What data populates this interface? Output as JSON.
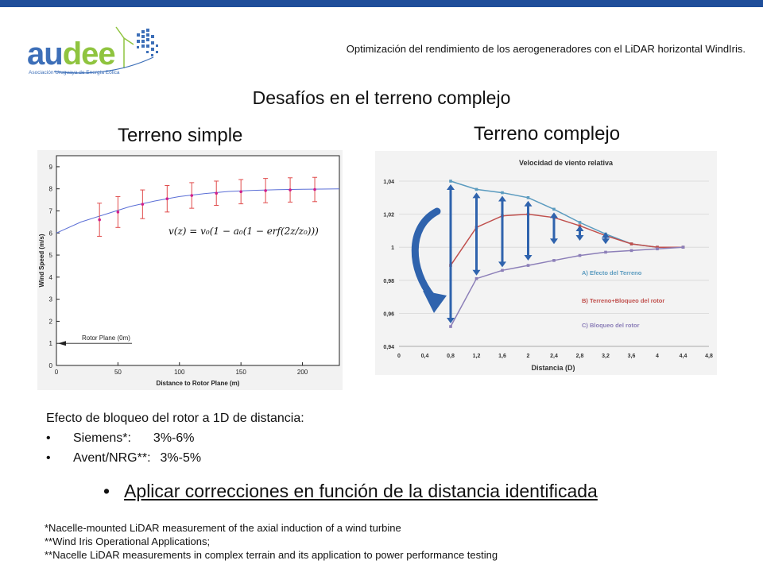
{
  "header": {
    "logo_text_part1": "au",
    "logo_text_part2": "dee",
    "logo_subtitle": "Asociación Uruguaya de Energía Eólica",
    "title": "Optimización del rendimiento de los aerogeneradores con el LiDAR horizontal WindIris."
  },
  "slide": {
    "title": "Desafíos en el terreno complejo",
    "left_heading": "Terreno simple",
    "right_heading": "Terreno complejo"
  },
  "notes": {
    "heading": "Efecto de bloqueo del rotor a 1D de distancia:",
    "items": [
      {
        "bullet": "•",
        "label": "Siemens*:",
        "value": "3%-6%"
      },
      {
        "bullet": "•",
        "label": "Avent/NRG**:",
        "value": "3%-5%"
      }
    ]
  },
  "action": {
    "bullet": "•",
    "text": "Aplicar correcciones en función de la distancia identificada"
  },
  "references": [
    "*Nacelle-mounted LiDAR measurement of the axial induction of a wind turbine",
    "**Wind Iris Operational Applications;",
    "**Nacelle LiDAR measurements in complex terrain and its application to power performance testing"
  ],
  "chart_data": [
    {
      "type": "scatter",
      "title": "",
      "xlabel": "Distance to Rotor Plane (m)",
      "ylabel": "Wind Speed (m/s)",
      "xlim": [
        0,
        230
      ],
      "ylim": [
        0,
        9.5
      ],
      "xticks": [
        "0",
        "50",
        "100",
        "150",
        "200"
      ],
      "yticks": [
        "0",
        "1",
        "2",
        "3",
        "4",
        "5",
        "6",
        "7",
        "8",
        "9"
      ],
      "grid": false,
      "curve": {
        "x": [
          0,
          20,
          40,
          60,
          80,
          100,
          120,
          140,
          160,
          180,
          200,
          230
        ],
        "y": [
          6.0,
          6.5,
          6.85,
          7.2,
          7.45,
          7.65,
          7.78,
          7.88,
          7.93,
          7.96,
          7.98,
          8.0
        ]
      },
      "points": {
        "x": [
          35,
          50,
          70,
          90,
          110,
          130,
          150,
          170,
          190,
          210
        ],
        "y": [
          6.6,
          6.95,
          7.3,
          7.55,
          7.7,
          7.8,
          7.87,
          7.92,
          7.95,
          7.97
        ],
        "err": [
          0.75,
          0.7,
          0.65,
          0.6,
          0.58,
          0.55,
          0.55,
          0.55,
          0.55,
          0.55
        ]
      },
      "formula": "v(z) = v₀(1 − a₀(1 − erf(2z/z₀)))",
      "annotation": "Rotor Plane (0m)",
      "annotation_y": 1
    },
    {
      "type": "line",
      "title": "Velocidad de viento relativa",
      "xlabel": "Distancia (D)",
      "ylabel": "",
      "xlim": [
        0,
        4.8
      ],
      "ylim": [
        0.94,
        1.04
      ],
      "xticks": [
        "0",
        "0,4",
        "0,8",
        "1,2",
        "1,6",
        "2",
        "2,4",
        "2,8",
        "3,2",
        "3,6",
        "4",
        "4,4",
        "4,8"
      ],
      "yticks": [
        "0,94",
        "0,96",
        "0,98",
        "1",
        "1,02",
        "1,04"
      ],
      "grid": true,
      "legend": "right",
      "series": [
        {
          "name": "A) Efecto del Terreno",
          "color": "#5b9bbf",
          "x": [
            0.8,
            1.2,
            1.6,
            2.0,
            2.4,
            2.8,
            3.2,
            3.6,
            4.0,
            4.4
          ],
          "y": [
            1.04,
            1.035,
            1.033,
            1.03,
            1.023,
            1.015,
            1.008,
            1.002,
            1.0,
            1.0
          ]
        },
        {
          "name": "B) Terreno+Bloqueo del rotor",
          "color": "#c0504d",
          "x": [
            0.8,
            1.2,
            1.6,
            2.0,
            2.4,
            2.8,
            3.2,
            3.6,
            4.0,
            4.4
          ],
          "y": [
            0.989,
            1.012,
            1.019,
            1.02,
            1.018,
            1.013,
            1.007,
            1.002,
            1.0,
            1.0
          ]
        },
        {
          "name": "C) Bloqueo del rotor",
          "color": "#8c7fb8",
          "x": [
            0.8,
            1.2,
            1.6,
            2.0,
            2.4,
            2.8,
            3.2,
            3.6,
            4.0,
            4.4
          ],
          "y": [
            0.952,
            0.981,
            0.986,
            0.989,
            0.992,
            0.995,
            0.997,
            0.998,
            0.999,
            1.0
          ]
        }
      ],
      "arrow_pairs": [
        [
          0.8,
          1.04,
          0.952
        ],
        [
          1.2,
          1.035,
          0.981
        ],
        [
          1.6,
          1.033,
          0.986
        ],
        [
          2.0,
          1.03,
          0.99
        ],
        [
          2.4,
          1.023,
          1.0
        ],
        [
          2.8,
          1.015,
          1.002
        ],
        [
          3.2,
          1.011,
          1.0
        ]
      ]
    }
  ]
}
